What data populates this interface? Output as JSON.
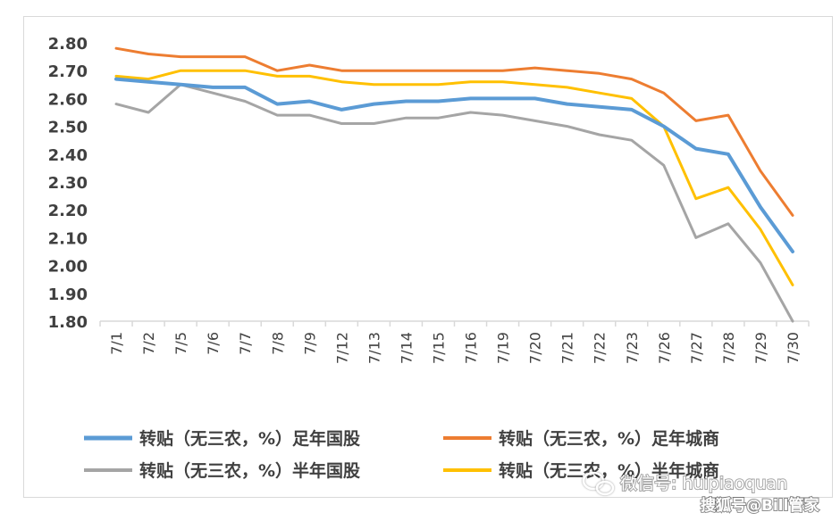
{
  "chart_data": {
    "type": "line",
    "categories": [
      "7/1",
      "7/2",
      "7/5",
      "7/6",
      "7/7",
      "7/8",
      "7/9",
      "7/12",
      "7/13",
      "7/14",
      "7/15",
      "7/16",
      "7/19",
      "7/20",
      "7/21",
      "7/22",
      "7/23",
      "7/26",
      "7/27",
      "7/28",
      "7/29",
      "7/30"
    ],
    "ylim": [
      1.8,
      2.8
    ],
    "yticks": [
      "2.80",
      "2.70",
      "2.60",
      "2.50",
      "2.40",
      "2.30",
      "2.20",
      "2.10",
      "2.00",
      "1.90",
      "1.80"
    ],
    "grid": false,
    "legend_position": "bottom",
    "series": [
      {
        "name": "转贴（无三农，%）足年国股",
        "color": "#5b9bd5",
        "width": 4,
        "values": [
          2.67,
          2.66,
          2.65,
          2.64,
          2.64,
          2.58,
          2.59,
          2.56,
          2.58,
          2.59,
          2.59,
          2.6,
          2.6,
          2.6,
          2.58,
          2.57,
          2.56,
          2.5,
          2.42,
          2.4,
          2.21,
          2.05
        ]
      },
      {
        "name": "转贴（无三农，%）足年城商",
        "color": "#ed7d31",
        "width": 3,
        "values": [
          2.78,
          2.76,
          2.75,
          2.75,
          2.75,
          2.7,
          2.72,
          2.7,
          2.7,
          2.7,
          2.7,
          2.7,
          2.7,
          2.71,
          2.7,
          2.69,
          2.67,
          2.62,
          2.52,
          2.54,
          2.34,
          2.18
        ]
      },
      {
        "name": "转贴（无三农，%）半年国股",
        "color": "#a5a5a5",
        "width": 3,
        "values": [
          2.58,
          2.55,
          2.65,
          2.62,
          2.59,
          2.54,
          2.54,
          2.51,
          2.51,
          2.53,
          2.53,
          2.55,
          2.54,
          2.52,
          2.5,
          2.47,
          2.45,
          2.36,
          2.1,
          2.15,
          2.01,
          1.8
        ]
      },
      {
        "name": "转贴（无三农，%）半年城商",
        "color": "#ffc000",
        "width": 3,
        "values": [
          2.68,
          2.67,
          2.7,
          2.7,
          2.7,
          2.68,
          2.68,
          2.66,
          2.65,
          2.65,
          2.65,
          2.66,
          2.66,
          2.65,
          2.64,
          2.62,
          2.6,
          2.5,
          2.24,
          2.28,
          2.13,
          1.93
        ]
      }
    ]
  },
  "watermark": {
    "line1": "微信号: huipiaoquan",
    "line2": "搜狐号@Bill管家",
    "icon": "wechat-icon"
  }
}
